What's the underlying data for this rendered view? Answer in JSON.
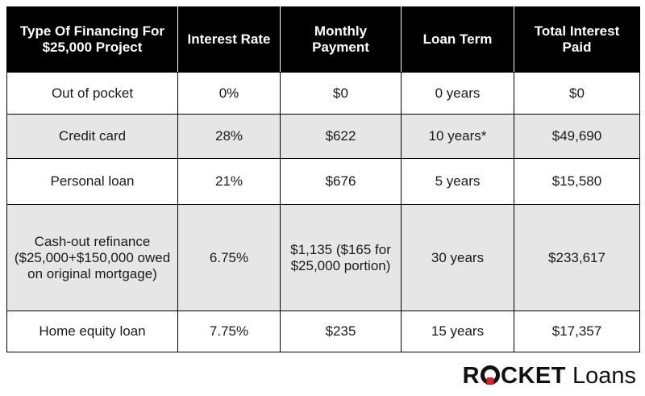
{
  "table": {
    "headers": [
      "Type Of Financing For $25,000 Project",
      "Interest Rate",
      "Monthly Payment",
      "Loan Term",
      "Total Interest Paid"
    ],
    "rows": [
      {
        "type": "Out of pocket",
        "rate": "0%",
        "monthly_payment": "$0",
        "term": "0 years",
        "total_interest": "$0"
      },
      {
        "type": "Credit card",
        "rate": "28%",
        "monthly_payment": "$622",
        "term": "10 years*",
        "total_interest": "$49,690"
      },
      {
        "type": "Personal loan",
        "rate": "21%",
        "monthly_payment": "$676",
        "term": "5 years",
        "total_interest": "$15,580"
      },
      {
        "type": "Cash-out refinance ($25,000+$150,000 owed on original mortgage)",
        "rate": "6.75%",
        "monthly_payment": "$1,135 ($165 for $25,000 portion)",
        "term": "30 years",
        "total_interest": "$233,617"
      },
      {
        "type": "Home equity loan",
        "rate": "7.75%",
        "monthly_payment": "$235",
        "term": "15 years",
        "total_interest": "$17,357"
      }
    ]
  },
  "logo": {
    "brand_start": "R",
    "brand_end": "CKET",
    "product": "Loans",
    "accent_color": "#d8232a"
  }
}
